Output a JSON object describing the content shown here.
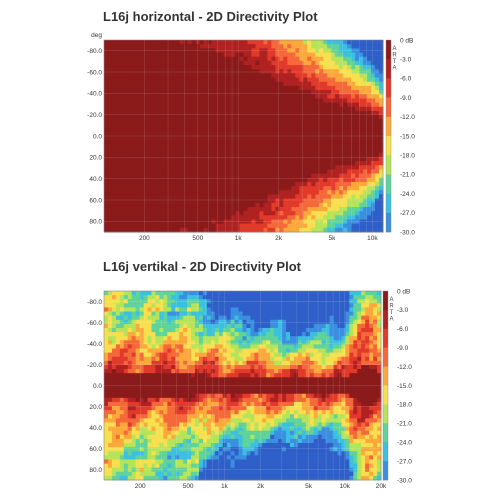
{
  "chart_data": [
    {
      "type": "heatmap",
      "title": "L16j horizontal - 2D Directivity Plot",
      "ylabel": "deg",
      "xlabel": "",
      "x_scale": "log",
      "xlim": [
        100,
        12000
      ],
      "ylim": [
        -90,
        90
      ],
      "x_ticks": [
        {
          "v": 200,
          "label": "200"
        },
        {
          "v": 500,
          "label": "500"
        },
        {
          "v": 1000,
          "label": "1k"
        },
        {
          "v": 2000,
          "label": "2k"
        },
        {
          "v": 5000,
          "label": "5k"
        },
        {
          "v": 10000,
          "label": "10k"
        }
      ],
      "y_ticks": [
        {
          "v": -80,
          "label": "-80.0"
        },
        {
          "v": -60,
          "label": "-60.0"
        },
        {
          "v": -40,
          "label": "-40.0"
        },
        {
          "v": -20,
          "label": "-20.0"
        },
        {
          "v": 0,
          "label": "0.0"
        },
        {
          "v": 20,
          "label": "20.0"
        },
        {
          "v": 40,
          "label": "40.0"
        },
        {
          "v": 60,
          "label": "60.0"
        },
        {
          "v": 80,
          "label": "80.0"
        }
      ],
      "colorbar": {
        "unit": "dB",
        "label": "ARTA",
        "ticks": [
          "0 dB",
          "-3.0",
          "-6.0",
          "-9.0",
          "-12.0",
          "-15.0",
          "-18.0",
          "-21.0",
          "-24.0",
          "-27.0",
          "-30.0"
        ],
        "levels": [
          0,
          -3,
          -6,
          -9,
          -12,
          -15,
          -18,
          -21,
          -24,
          -27,
          -30
        ],
        "colors": [
          "#8b1a1a",
          "#b02222",
          "#e23a2a",
          "#f4683a",
          "#fca83a",
          "#f6e050",
          "#b5e45a",
          "#5fd39a",
          "#3cc0e0",
          "#3b8fe0",
          "#2f5fc8"
        ]
      },
      "contour_3dB_deg": [
        {
          "f": 100,
          "deg": 90
        },
        {
          "f": 300,
          "deg": 90
        },
        {
          "f": 500,
          "deg": 85
        },
        {
          "f": 800,
          "deg": 75
        },
        {
          "f": 1000,
          "deg": 70
        },
        {
          "f": 1500,
          "deg": 60
        },
        {
          "f": 2000,
          "deg": 50
        },
        {
          "f": 3000,
          "deg": 40
        },
        {
          "f": 5000,
          "deg": 30
        },
        {
          "f": 7000,
          "deg": 25
        },
        {
          "f": 10000,
          "deg": 20
        },
        {
          "f": 12000,
          "deg": 15
        }
      ]
    },
    {
      "type": "heatmap",
      "title": "L16j vertikal - 2D Directivity Plot",
      "ylabel": "",
      "xlabel": "",
      "x_scale": "log",
      "xlim": [
        100,
        20000
      ],
      "ylim": [
        -90,
        90
      ],
      "x_ticks": [
        {
          "v": 200,
          "label": "200"
        },
        {
          "v": 500,
          "label": "500"
        },
        {
          "v": 1000,
          "label": "1k"
        },
        {
          "v": 2000,
          "label": "2k"
        },
        {
          "v": 5000,
          "label": "5k"
        },
        {
          "v": 10000,
          "label": "10k"
        },
        {
          "v": 20000,
          "label": "20k"
        }
      ],
      "y_ticks": [
        {
          "v": -80,
          "label": "-80.0"
        },
        {
          "v": -60,
          "label": "-60.0"
        },
        {
          "v": -40,
          "label": "-40.0"
        },
        {
          "v": -20,
          "label": "-20.0"
        },
        {
          "v": 0,
          "label": "0.0"
        },
        {
          "v": 20,
          "label": "20.0"
        },
        {
          "v": 40,
          "label": "40.0"
        },
        {
          "v": 60,
          "label": "60.0"
        },
        {
          "v": 80,
          "label": "80.0"
        }
      ],
      "colorbar": {
        "unit": "dB",
        "label": "ARTA",
        "ticks": [
          "0 dB",
          "-3.0",
          "-6.0",
          "-9.0",
          "-12.0",
          "-15.0",
          "-18.0",
          "-21.0",
          "-24.0",
          "-27.0",
          "-30.0"
        ],
        "levels": [
          0,
          -3,
          -6,
          -9,
          -12,
          -15,
          -18,
          -21,
          -24,
          -27,
          -30
        ],
        "colors": [
          "#8b1a1a",
          "#b02222",
          "#e23a2a",
          "#f4683a",
          "#fca83a",
          "#f6e050",
          "#b5e45a",
          "#5fd39a",
          "#3cc0e0",
          "#3b8fe0",
          "#2f5fc8"
        ]
      },
      "contour_3dB_deg": [
        {
          "f": 100,
          "deg": 12
        },
        {
          "f": 500,
          "deg": 10
        },
        {
          "f": 1000,
          "deg": 8
        },
        {
          "f": 2000,
          "deg": 7
        },
        {
          "f": 5000,
          "deg": 6
        },
        {
          "f": 10000,
          "deg": 7
        },
        {
          "f": 15000,
          "deg": 20
        },
        {
          "f": 20000,
          "deg": 12
        }
      ]
    }
  ]
}
